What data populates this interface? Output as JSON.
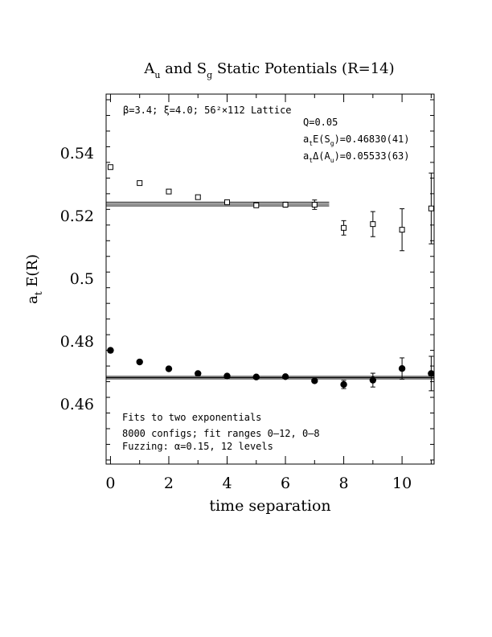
{
  "chart_data": {
    "type": "scatter",
    "title": {
      "p1": "A",
      "p1_sub": "u",
      "p2": " and S",
      "p2_sub": "g",
      "p3": " Static Potentials (R=14)"
    },
    "xlabel": "time separation",
    "ylabel": {
      "prefix": "a",
      "sub": "t",
      "suffix": " E(R)"
    },
    "xlim": [
      -0.15,
      11.1
    ],
    "ylim": [
      0.4407,
      0.5588
    ],
    "x_ticks": [
      "0",
      "2",
      "4",
      "6",
      "8",
      "10"
    ],
    "x_tick_values": [
      0,
      2,
      4,
      6,
      8,
      10
    ],
    "y_ticks": [
      "0.46",
      "0.48",
      "0.5",
      "0.52",
      "0.54"
    ],
    "y_tick_values": [
      0.46,
      0.48,
      0.5,
      0.52,
      0.54
    ],
    "series": [
      {
        "marker": "open-square",
        "points": [
          {
            "x": 0,
            "y": 0.5355,
            "err": 0.0003
          },
          {
            "x": 1,
            "y": 0.5304,
            "err": 0.0003
          },
          {
            "x": 2,
            "y": 0.5277,
            "err": 0.0003
          },
          {
            "x": 3,
            "y": 0.5259,
            "err": 0.0004
          },
          {
            "x": 4,
            "y": 0.5243,
            "err": 0.0005
          },
          {
            "x": 5,
            "y": 0.5233,
            "err": 0.0006
          },
          {
            "x": 6,
            "y": 0.5235,
            "err": 0.0008
          },
          {
            "x": 7,
            "y": 0.5235,
            "err": 0.0015
          },
          {
            "x": 8,
            "y": 0.5161,
            "err": 0.0023
          },
          {
            "x": 9,
            "y": 0.5173,
            "err": 0.004
          },
          {
            "x": 10,
            "y": 0.5155,
            "err": 0.0067
          },
          {
            "x": 11,
            "y": 0.5223,
            "err": 0.0113
          }
        ],
        "fit": {
          "center": 0.5237,
          "err": 0.0006,
          "x_range": [
            -0.15,
            7.5
          ]
        }
      },
      {
        "marker": "filled-circle",
        "points": [
          {
            "x": 0,
            "y": 0.477,
            "err": 0.0003
          },
          {
            "x": 1,
            "y": 0.4733,
            "err": 0.0003
          },
          {
            "x": 2,
            "y": 0.4711,
            "err": 0.0003
          },
          {
            "x": 3,
            "y": 0.4696,
            "err": 0.0003
          },
          {
            "x": 4,
            "y": 0.4688,
            "err": 0.0004
          },
          {
            "x": 5,
            "y": 0.4685,
            "err": 0.0004
          },
          {
            "x": 6,
            "y": 0.4686,
            "err": 0.0005
          },
          {
            "x": 7,
            "y": 0.4673,
            "err": 0.0007
          },
          {
            "x": 8,
            "y": 0.4661,
            "err": 0.0013
          },
          {
            "x": 9,
            "y": 0.4675,
            "err": 0.0022
          },
          {
            "x": 10,
            "y": 0.4712,
            "err": 0.0034
          },
          {
            "x": 11,
            "y": 0.4696,
            "err": 0.0055
          }
        ],
        "fit": {
          "center": 0.4683,
          "err": 0.0004,
          "x_range": [
            -0.15,
            11.1
          ]
        }
      }
    ],
    "annotations": {
      "lattice": "β=3.4; ξ=4.0; 56²×112 Lattice",
      "q": "Q=0.05",
      "es": {
        "prefix": "a",
        "sub1": "t",
        "mid": "E(S",
        "sub2": "g",
        "suffix": ")=0.46830(41)"
      },
      "da": {
        "prefix": "a",
        "sub1": "t",
        "mid": "Δ(A",
        "sub2": "u",
        "suffix": ")=0.05533(63)"
      },
      "fits": "Fits to two exponentials",
      "configs": "8000 configs; fit ranges 0–12, 0–8",
      "fuzzing": "Fuzzing: α=0.15, 12 levels"
    }
  }
}
